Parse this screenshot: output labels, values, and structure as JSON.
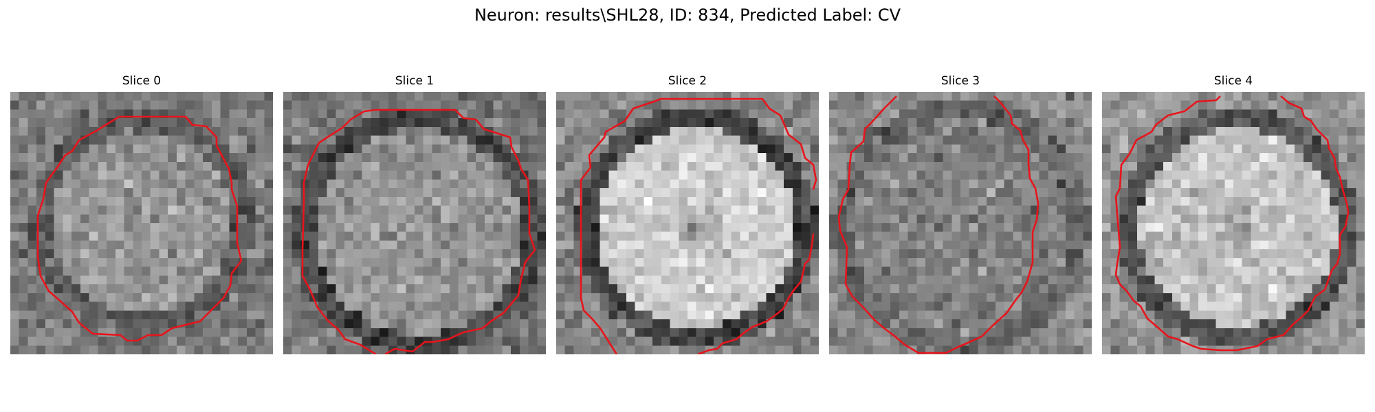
{
  "figure": {
    "title": "Neuron: results\\SHL28, ID: 834, Predicted Label: CV"
  },
  "panels": [
    {
      "title": "Slice 0"
    },
    {
      "title": "Slice 1"
    },
    {
      "title": "Slice 2"
    },
    {
      "title": "Slice 3"
    },
    {
      "title": "Slice 4"
    }
  ],
  "colors": {
    "contour": "#e8141b",
    "background": "#ffffff",
    "colormap": "gray"
  }
}
